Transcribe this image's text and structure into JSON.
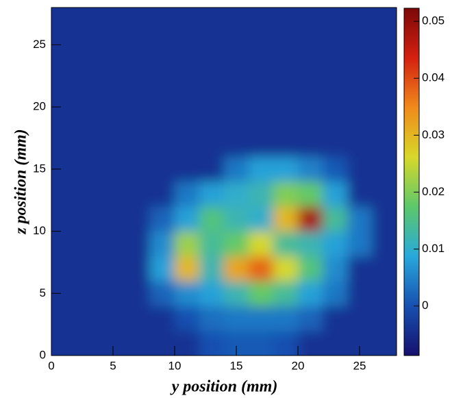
{
  "chart_data": {
    "type": "heatmap",
    "xlabel": "y position  (mm)",
    "ylabel": "z position  (mm)",
    "xlim": [
      0,
      28
    ],
    "ylim": [
      0,
      28
    ],
    "xticks": [
      0,
      5,
      10,
      15,
      20,
      25
    ],
    "yticks": [
      0,
      5,
      10,
      15,
      20,
      25
    ],
    "xbins": [
      0,
      2,
      4,
      6,
      8,
      10,
      12,
      14,
      16,
      18,
      20,
      22,
      24,
      26,
      28
    ],
    "ybins": [
      0,
      2,
      4,
      6,
      8,
      10,
      12,
      14,
      16,
      18,
      20,
      22,
      24,
      26,
      28
    ],
    "z": [
      [
        -0.004,
        -0.004,
        -0.004,
        -0.004,
        -0.004,
        -0.004,
        0.0,
        0.001,
        0.001,
        0.0,
        -0.004,
        -0.004,
        -0.004,
        -0.004
      ],
      [
        -0.004,
        -0.004,
        -0.004,
        -0.004,
        -0.004,
        0.0,
        0.003,
        0.004,
        0.004,
        0.004,
        0.002,
        -0.004,
        -0.004,
        -0.004
      ],
      [
        -0.004,
        -0.004,
        -0.004,
        -0.004,
        0.002,
        0.006,
        0.008,
        0.012,
        0.018,
        0.014,
        0.008,
        0.004,
        -0.004,
        -0.004
      ],
      [
        -0.004,
        -0.004,
        -0.004,
        -0.004,
        0.008,
        0.03,
        0.012,
        0.032,
        0.038,
        0.026,
        0.016,
        0.006,
        -0.004,
        -0.004
      ],
      [
        -0.004,
        -0.004,
        -0.004,
        -0.004,
        0.006,
        0.022,
        0.014,
        0.018,
        0.026,
        0.014,
        0.012,
        0.008,
        0.004,
        -0.004
      ],
      [
        -0.004,
        -0.004,
        -0.004,
        -0.004,
        0.002,
        0.008,
        0.016,
        0.012,
        0.01,
        0.03,
        0.048,
        0.014,
        0.004,
        -0.004
      ],
      [
        -0.004,
        -0.004,
        -0.004,
        -0.004,
        -0.004,
        0.004,
        0.008,
        0.01,
        0.012,
        0.02,
        0.018,
        0.008,
        -0.004,
        -0.004
      ],
      [
        -0.004,
        -0.004,
        -0.004,
        -0.004,
        -0.004,
        -0.004,
        -0.004,
        0.004,
        0.008,
        0.008,
        0.005,
        0.001,
        -0.004,
        -0.004
      ],
      [
        -0.004,
        -0.004,
        -0.004,
        -0.004,
        -0.004,
        -0.004,
        -0.004,
        -0.004,
        -0.004,
        -0.004,
        -0.004,
        -0.004,
        -0.004,
        -0.004
      ],
      [
        -0.004,
        -0.004,
        -0.004,
        -0.004,
        -0.004,
        -0.004,
        -0.004,
        -0.004,
        -0.004,
        -0.004,
        -0.004,
        -0.004,
        -0.004,
        -0.004
      ],
      [
        -0.004,
        -0.004,
        -0.004,
        -0.004,
        -0.004,
        -0.004,
        -0.004,
        -0.004,
        -0.004,
        -0.004,
        -0.004,
        -0.004,
        -0.004,
        -0.004
      ],
      [
        -0.004,
        -0.004,
        -0.004,
        -0.004,
        -0.004,
        -0.004,
        -0.004,
        -0.004,
        -0.004,
        -0.004,
        -0.004,
        -0.004,
        -0.004,
        -0.004
      ],
      [
        -0.004,
        -0.004,
        -0.004,
        -0.004,
        -0.004,
        -0.004,
        -0.004,
        -0.004,
        -0.004,
        -0.004,
        -0.004,
        -0.004,
        -0.004,
        -0.004
      ],
      [
        -0.004,
        -0.004,
        -0.004,
        -0.004,
        -0.004,
        -0.004,
        -0.004,
        -0.004,
        -0.004,
        -0.004,
        -0.004,
        -0.004,
        -0.004,
        -0.004
      ]
    ],
    "zlim": [
      -0.0087,
      0.0523
    ],
    "zticks": [
      0,
      0.01,
      0.02,
      0.03,
      0.04,
      0.05
    ],
    "colorscale": [
      "#16106e",
      "#1750b0",
      "#28a8dc",
      "#5cc86a",
      "#d8d82a",
      "#f08a1a",
      "#d42010",
      "#7c0808"
    ]
  }
}
